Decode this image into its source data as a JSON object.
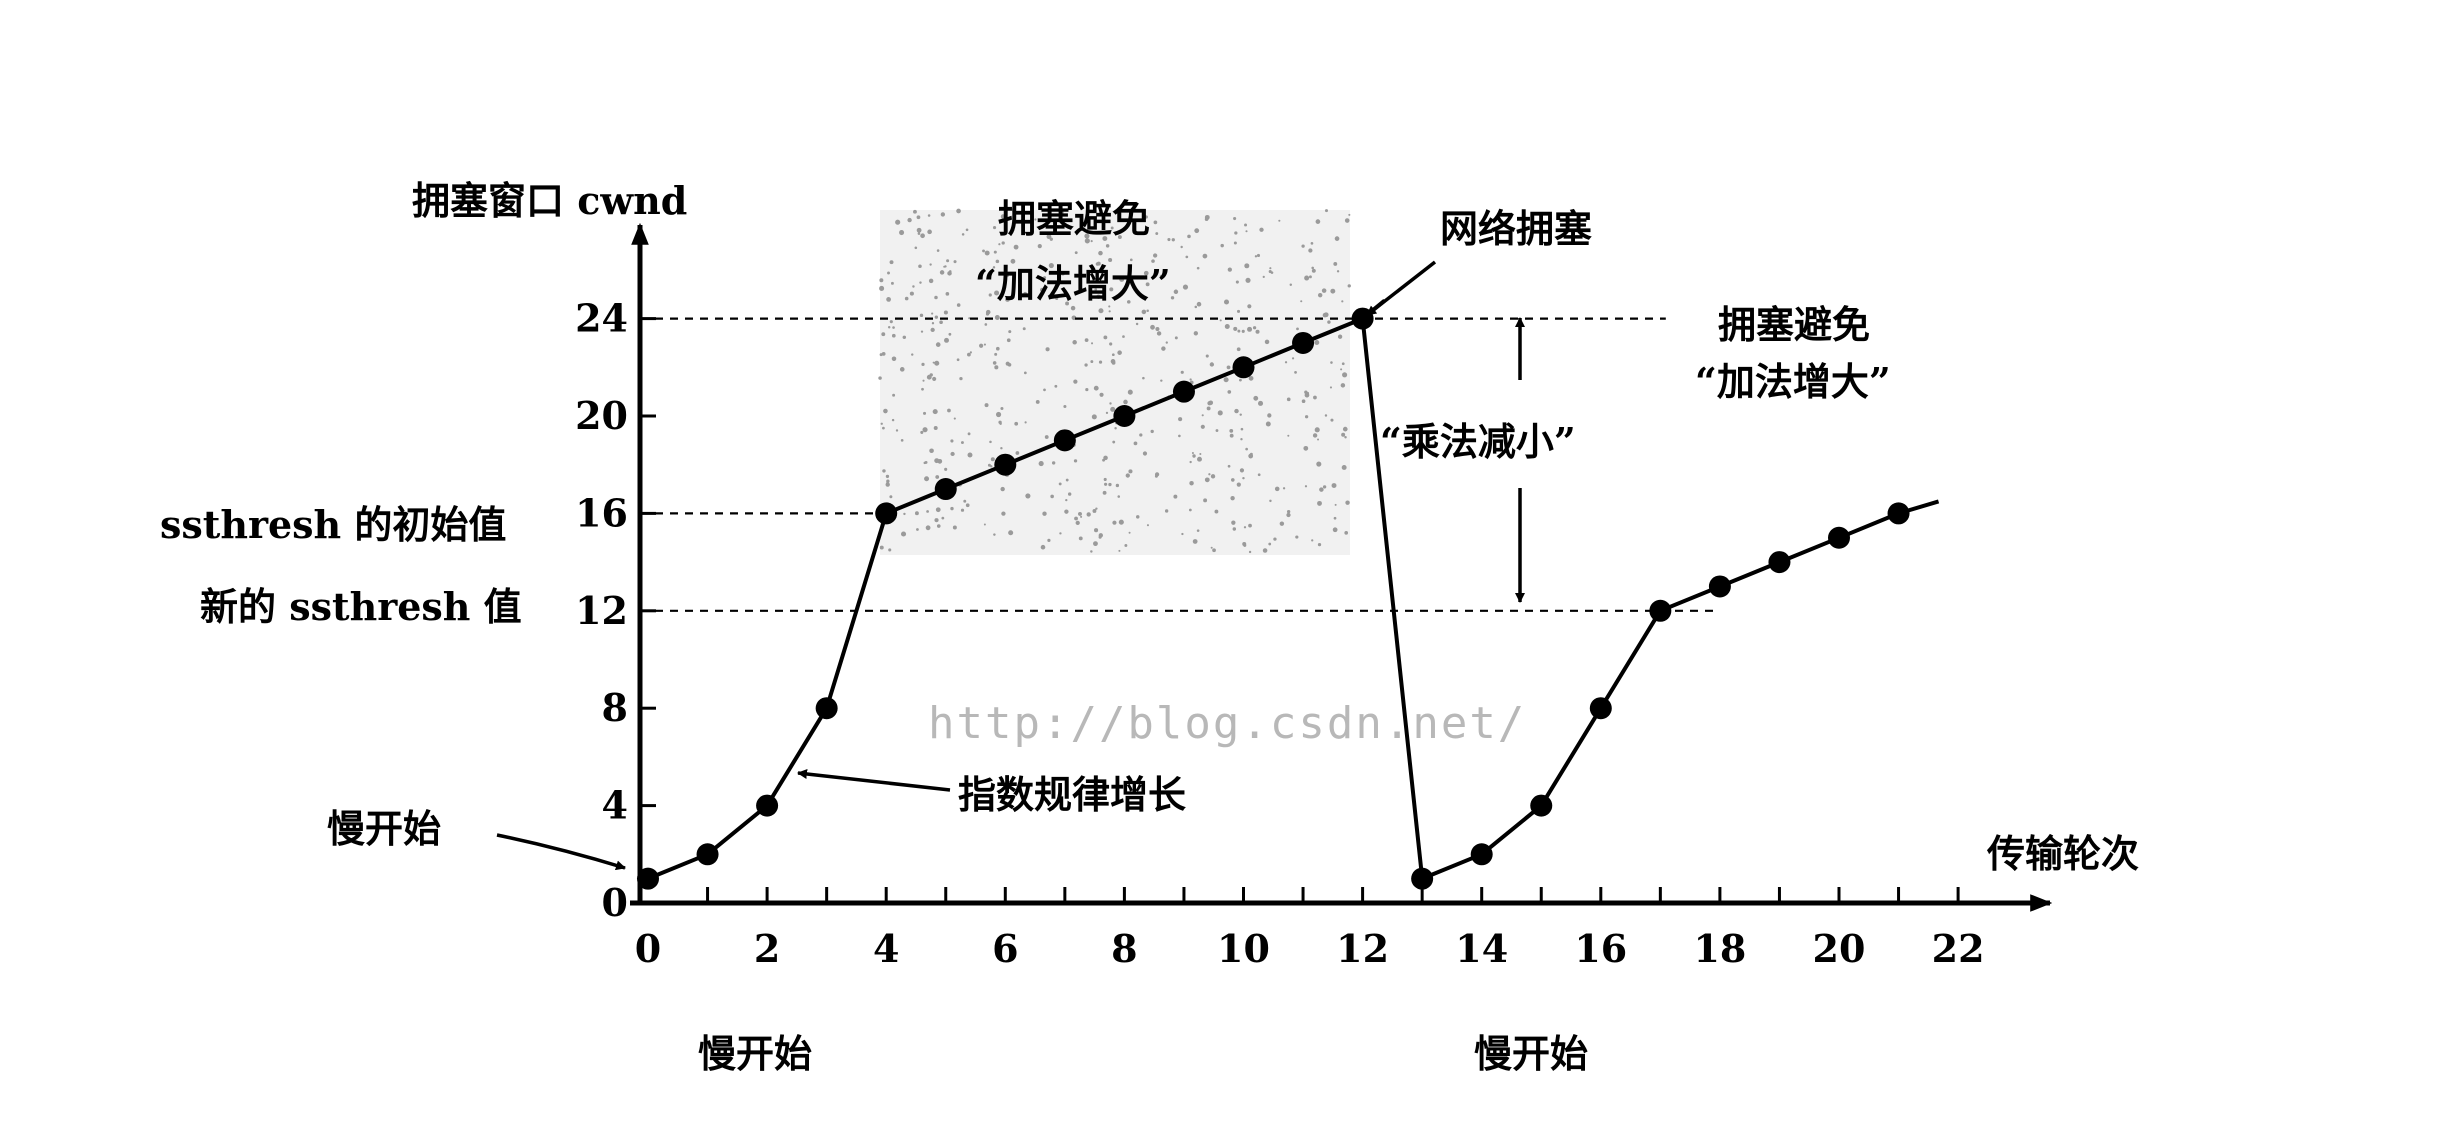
{
  "chart_data": {
    "type": "line",
    "title": "",
    "xlabel": "传输轮次",
    "ylabel": "拥塞窗口 cwnd",
    "xlim": [
      0,
      23
    ],
    "ylim": [
      0,
      26
    ],
    "x_ticks": [
      "0",
      "2",
      "4",
      "6",
      "8",
      "10",
      "12",
      "14",
      "16",
      "18",
      "20",
      "22"
    ],
    "y_ticks": [
      "0",
      "4",
      "8",
      "12",
      "16",
      "20",
      "24"
    ],
    "grid": false,
    "series": [
      {
        "values": [
          [
            0,
            1
          ],
          [
            1,
            2
          ],
          [
            2,
            4
          ],
          [
            3,
            8
          ],
          [
            4,
            16
          ],
          [
            5,
            17
          ],
          [
            6,
            18
          ],
          [
            7,
            19
          ],
          [
            8,
            20
          ],
          [
            9,
            21
          ],
          [
            10,
            22
          ],
          [
            11,
            23
          ],
          [
            12,
            24
          ],
          [
            13,
            1
          ],
          [
            14,
            2
          ],
          [
            15,
            4
          ],
          [
            16,
            8
          ],
          [
            17,
            12
          ],
          [
            18,
            13
          ],
          [
            19,
            14
          ],
          [
            20,
            15
          ],
          [
            21,
            16
          ]
        ]
      }
    ],
    "reference_lines": [
      {
        "y": 24,
        "x_range": [
          0,
          16
        ]
      },
      {
        "y": 16,
        "x_range": [
          0,
          4
        ]
      },
      {
        "y": 12,
        "x_range": [
          0,
          18
        ]
      }
    ],
    "y_side_labels": [
      {
        "y": 16,
        "text": "ssthresh 的初始值"
      },
      {
        "y": 12,
        "text": "新的 ssthresh 值"
      }
    ],
    "annotations": {
      "slow_start_left": "慢开始",
      "exponential_growth": "指数规律增长",
      "network_congestion": "网络拥塞",
      "multiplicative_decrease": "“乘法减小”",
      "ca_title_1": "拥塞避免",
      "ca_sub_1": "“加法增大”",
      "ca_title_2": "拥塞避免",
      "ca_sub_2": "“加法增大”",
      "bottom_slow_start_1": "慢开始",
      "bottom_slow_start_2": "慢开始"
    },
    "watermark": "http://blog.csdn.net/"
  }
}
